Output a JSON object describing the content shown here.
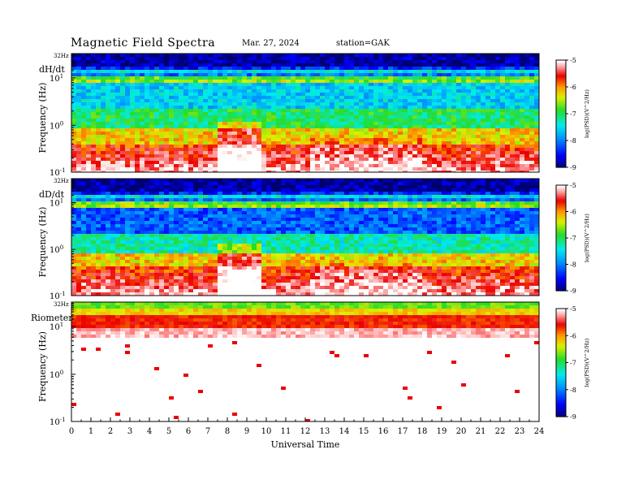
{
  "header": {
    "title": "Magnetic Field Spectra",
    "date": "Mar. 27, 2024",
    "station": "station=GAK"
  },
  "chart_data": [
    {
      "type": "heatmap",
      "panel_label": "dH/dt",
      "ylabel": "Frequency (Hz)",
      "yscale": "log",
      "top_label": "32Hz",
      "yticks": [
        "10^-1",
        "10^0",
        "10^1"
      ],
      "colorbar": {
        "label": "log(PSD)(V^2/Hz)",
        "range": [
          -9,
          -5
        ],
        "ticks": [
          -5,
          -6,
          -7,
          -8,
          -9
        ]
      }
    },
    {
      "type": "heatmap",
      "panel_label": "dD/dt",
      "ylabel": "Frequency (Hz)",
      "yscale": "log",
      "top_label": "32Hz",
      "yticks": [
        "10^-1",
        "10^0",
        "10^1"
      ],
      "colorbar": {
        "label": "log(PSD)(V^2/Hz)",
        "range": [
          -9,
          -5
        ],
        "ticks": [
          -5,
          -6,
          -7,
          -8,
          -9
        ]
      }
    },
    {
      "type": "heatmap",
      "panel_label": "Riometer",
      "ylabel": "Frequency (Hz)",
      "yscale": "log",
      "top_label": "32Hz",
      "yticks": [
        "10^-1",
        "10^0",
        "10^1"
      ],
      "colorbar": {
        "label": "log(PSD)(V^2/Hz)",
        "range": [
          -9,
          -5
        ],
        "ticks": [
          -5,
          -6,
          -7,
          -8,
          -9
        ]
      }
    }
  ],
  "xaxis": {
    "label": "Universal Time",
    "range": [
      0,
      24
    ],
    "ticks": [
      "0",
      "1",
      "2",
      "3",
      "4",
      "5",
      "6",
      "7",
      "8",
      "9",
      "10",
      "11",
      "12",
      "13",
      "14",
      "15",
      "16",
      "17",
      "18",
      "19",
      "20",
      "21",
      "22",
      "23",
      "24"
    ]
  }
}
